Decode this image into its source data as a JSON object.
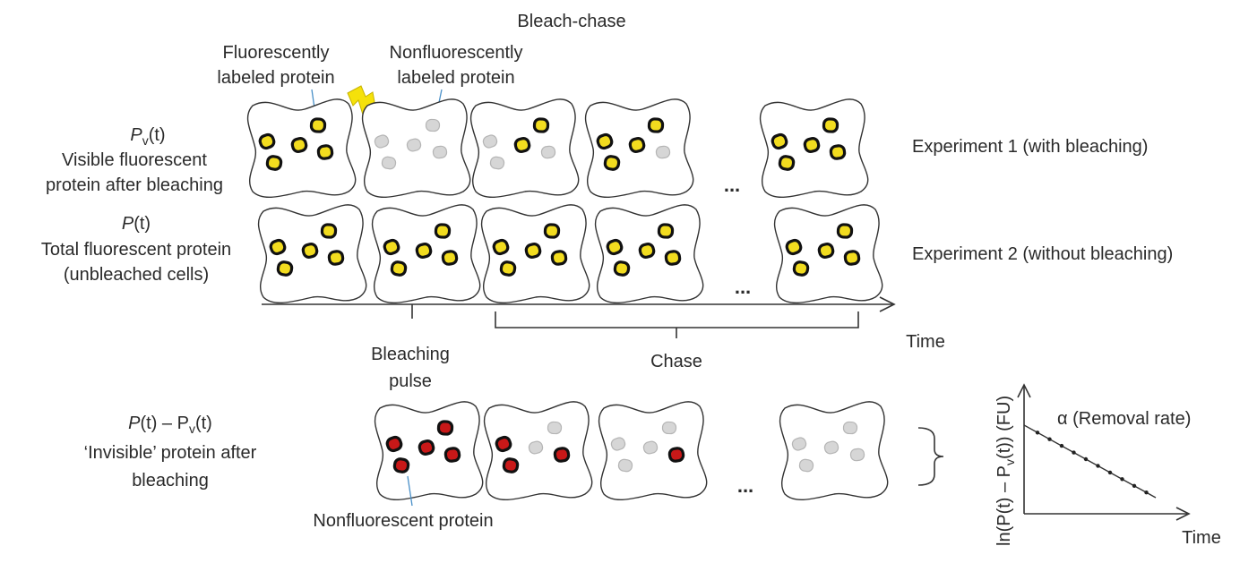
{
  "title": "Bleach-chase",
  "labels": {
    "fluorescently_labeled": [
      "Fluorescently",
      "labeled protein"
    ],
    "nonfluorescently_labeled": [
      "Nonfluorescently",
      "labeled protein"
    ],
    "nonfluorescent_protein": "Nonfluorescent protein",
    "bleaching_pulse": [
      "Bleaching",
      "pulse"
    ],
    "chase": "Chase",
    "time_axis": "Time",
    "ellipsis": "..."
  },
  "rows": {
    "experiment1": {
      "symbol": "P",
      "subscript": "v",
      "arg": "(t)",
      "description": [
        "Visible fluorescent",
        "protein after bleaching"
      ],
      "name": "Experiment 1 (with bleaching)",
      "cells": [
        "yellow-all",
        "gray-all",
        "mixed-2",
        "mixed-3",
        "mixed-4"
      ]
    },
    "experiment2": {
      "symbol": "P",
      "arg": "(t)",
      "description": [
        "Total fluorescent protein",
        "(unbleached cells)"
      ],
      "name": "Experiment 2 (without bleaching)",
      "cells": [
        "yellow-all",
        "yellow-all",
        "yellow-all",
        "yellow-all",
        "yellow-all"
      ]
    },
    "invisible": {
      "expression": [
        "P",
        "(t) – P",
        "v",
        "(t)"
      ],
      "description": [
        "‘Invisible’ protein after",
        "bleaching"
      ],
      "cells": [
        "red-all",
        "red-3",
        "red-1",
        "gray-all"
      ]
    }
  },
  "inset": {
    "ylabel": [
      "ln(P(t) – P",
      "v",
      "(t)) (FU)"
    ],
    "xlabel": "Time",
    "annotation": "α (Removal rate)"
  },
  "colors": {
    "fluorescent": "#f2dc1f",
    "nonfluorescent_gray": "#d6d6d6",
    "invisible_red": "#c81818",
    "leader_line": "#4a90c8",
    "flash": "#f5e10a"
  },
  "icons": [
    "lightning-bolt-icon"
  ]
}
